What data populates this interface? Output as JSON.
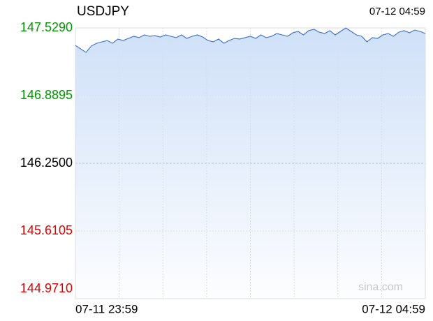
{
  "chart_data": {
    "type": "line",
    "title": "USDJPY",
    "time": "07-12 04:59",
    "watermark": "sina.com",
    "categories": [
      "07-11 23:59",
      null,
      null,
      null,
      null,
      null,
      null,
      null,
      null,
      null,
      null,
      null,
      null,
      null,
      null,
      null,
      null,
      null,
      null,
      null,
      null,
      null,
      null,
      null,
      null,
      null,
      null,
      null,
      null,
      null,
      null,
      null,
      null,
      null,
      null,
      null,
      null,
      null,
      null,
      null,
      null,
      null,
      null,
      null,
      null,
      null,
      null,
      null,
      null,
      null,
      null,
      null,
      null,
      null,
      null,
      null,
      null,
      null,
      null,
      null,
      null,
      null,
      null,
      null,
      null,
      null,
      "07-12 04:59"
    ],
    "series": [
      {
        "name": "USDJPY",
        "color": "#3a6fc0",
        "values": [
          147.364,
          147.331,
          147.298,
          147.358,
          147.384,
          147.397,
          147.41,
          147.384,
          147.424,
          147.41,
          147.43,
          147.45,
          147.437,
          147.463,
          147.45,
          147.456,
          147.443,
          147.463,
          147.45,
          147.437,
          147.463,
          147.43,
          147.45,
          147.463,
          147.443,
          147.41,
          147.397,
          147.424,
          147.384,
          147.41,
          147.43,
          147.424,
          147.437,
          147.45,
          147.43,
          147.463,
          147.437,
          147.45,
          147.476,
          147.463,
          147.45,
          147.483,
          147.496,
          147.463,
          147.503,
          147.516,
          147.489,
          147.476,
          147.503,
          147.463,
          147.496,
          147.529,
          147.496,
          147.463,
          147.45,
          147.397,
          147.437,
          147.43,
          147.463,
          147.476,
          147.45,
          147.489,
          147.503,
          147.483,
          147.509,
          147.496,
          147.476
        ]
      }
    ],
    "ylim": [
      144.971,
      147.529
    ],
    "yticks": [
      {
        "value": 144.971,
        "label": "144.9710"
      },
      {
        "value": 145.6105,
        "label": "145.6105"
      },
      {
        "value": 146.25,
        "label": "146.2500"
      },
      {
        "value": 146.8895,
        "label": "146.8895"
      },
      {
        "value": 147.529,
        "label": "147.5290"
      }
    ],
    "grid": true,
    "fill_color": "#cfe0f8",
    "tick_colors": {
      "up": "#009900",
      "flat": "#000000",
      "down": "#dd0000"
    }
  }
}
